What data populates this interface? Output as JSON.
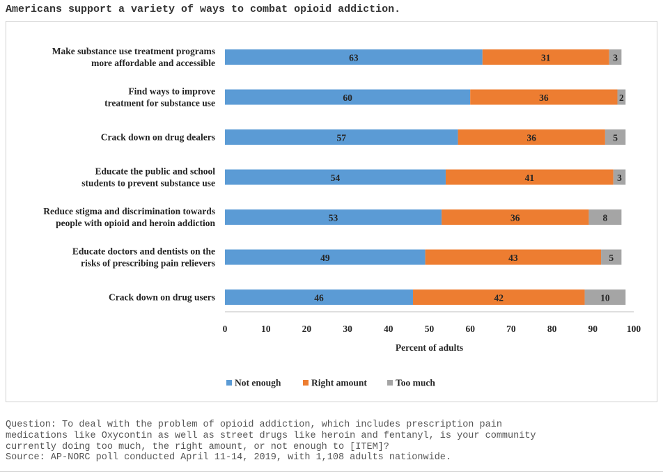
{
  "title": "Americans support a variety of ways to combat opioid addiction.",
  "colors": {
    "not_enough": "#5b9bd5",
    "right_amount": "#ed7d31",
    "too_much": "#a5a5a5"
  },
  "chart_data": {
    "type": "bar",
    "orientation": "horizontal",
    "stacked": true,
    "categories": [
      [
        "Make substance use treatment programs",
        "more affordable and accessible"
      ],
      [
        "Find ways to improve",
        "treatment for substance use"
      ],
      [
        "Crack down on drug dealers"
      ],
      [
        "Educate the public and school",
        "students to prevent substance use"
      ],
      [
        "Reduce stigma and discrimination towards",
        "people with opioid and heroin addiction"
      ],
      [
        "Educate doctors and dentists on the",
        "risks of prescribing pain relievers"
      ],
      [
        "Crack down on drug users"
      ]
    ],
    "series": [
      {
        "name": "Not enough",
        "color": "#5b9bd5",
        "values": [
          63,
          60,
          57,
          54,
          53,
          49,
          46
        ]
      },
      {
        "name": "Right amount",
        "color": "#ed7d31",
        "values": [
          31,
          36,
          36,
          41,
          36,
          43,
          42
        ]
      },
      {
        "name": "Too much",
        "color": "#a5a5a5",
        "values": [
          3,
          2,
          5,
          3,
          8,
          5,
          10
        ]
      }
    ],
    "xlabel": "Percent of adults",
    "xlim": [
      0,
      100
    ],
    "xticks": [
      0,
      10,
      20,
      30,
      40,
      50,
      60,
      70,
      80,
      90,
      100
    ],
    "legend_position": "bottom",
    "grid": false
  },
  "footnote": {
    "question_lines": [
      "Question: To deal with the problem of opioid addiction, which includes prescription pain",
      "medications like Oxycontin as well as street drugs like heroin and fentanyl, is your community",
      "currently doing too much, the right amount, or not enough to [ITEM]?"
    ],
    "source": "Source: AP-NORC poll conducted April 11-14, 2019, with 1,108 adults nationwide."
  }
}
